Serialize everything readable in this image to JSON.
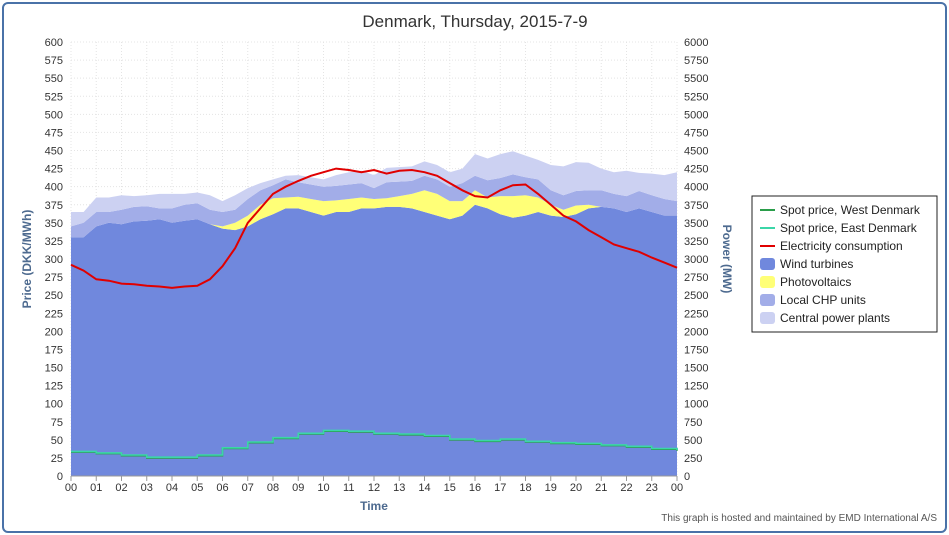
{
  "chart_data": {
    "type": "area",
    "title": "Denmark, Thursday, 2015-7-9",
    "xlabel": "Time",
    "ylabel_left": "Price (DKK/MWh)",
    "ylabel_right": "Power (MW)",
    "ylim_left": [
      0,
      600
    ],
    "ylim_right": [
      0,
      6000
    ],
    "left_ticks": [
      0,
      25,
      50,
      75,
      100,
      125,
      150,
      175,
      200,
      225,
      250,
      275,
      300,
      325,
      350,
      375,
      400,
      425,
      450,
      475,
      500,
      525,
      550,
      575,
      600
    ],
    "right_ticks": [
      0,
      250,
      500,
      750,
      1000,
      1250,
      1500,
      1750,
      2000,
      2250,
      2500,
      2750,
      3000,
      3250,
      3500,
      3750,
      4000,
      4250,
      4500,
      4750,
      5000,
      5250,
      5500,
      5750,
      6000
    ],
    "x_labels": [
      "00",
      "01",
      "02",
      "03",
      "04",
      "05",
      "06",
      "07",
      "08",
      "09",
      "10",
      "11",
      "12",
      "13",
      "14",
      "15",
      "16",
      "17",
      "18",
      "19",
      "20",
      "21",
      "22",
      "23",
      "00"
    ],
    "x_hours": [
      0,
      0.5,
      1,
      1.5,
      2,
      2.5,
      3,
      3.5,
      4,
      4.5,
      5,
      5.5,
      6,
      6.5,
      7,
      7.5,
      8,
      8.5,
      9,
      9.5,
      10,
      10.5,
      11,
      11.5,
      12,
      12.5,
      13,
      13.5,
      14,
      14.5,
      15,
      15.5,
      16,
      16.5,
      17,
      17.5,
      18,
      18.5,
      19,
      19.5,
      20,
      20.5,
      21,
      21.5,
      22,
      22.5,
      23,
      23.5,
      24
    ],
    "grid": true,
    "legend_position": "right",
    "series": [
      {
        "name": "Spot price, West Denmark",
        "kind": "step-line",
        "axis": "left",
        "color": "#2a9d4a",
        "values": [
          33,
          33,
          31,
          31,
          28,
          28,
          25,
          25,
          25,
          25,
          28,
          28,
          38,
          38,
          46,
          46,
          52,
          52,
          58,
          58,
          62,
          62,
          61,
          61,
          58,
          58,
          57,
          57,
          55,
          55,
          50,
          50,
          48,
          48,
          50,
          50,
          47,
          47,
          45,
          45,
          44,
          44,
          42,
          42,
          40,
          40,
          37,
          37,
          35
        ]
      },
      {
        "name": "Spot price, East Denmark",
        "kind": "step-line",
        "axis": "left",
        "color": "#3bd6a8",
        "values": [
          34,
          34,
          32,
          32,
          29,
          29,
          26,
          26,
          26,
          26,
          29,
          29,
          39,
          39,
          47,
          47,
          53,
          53,
          59,
          59,
          63,
          63,
          62,
          62,
          59,
          59,
          58,
          58,
          56,
          56,
          51,
          51,
          49,
          49,
          51,
          51,
          48,
          48,
          46,
          46,
          45,
          45,
          43,
          43,
          41,
          41,
          38,
          38,
          36
        ]
      },
      {
        "name": "Electricity consumption",
        "kind": "line",
        "axis": "right",
        "color": "#e00000",
        "values": [
          2920,
          2840,
          2720,
          2700,
          2660,
          2650,
          2630,
          2620,
          2600,
          2620,
          2630,
          2720,
          2900,
          3150,
          3500,
          3700,
          3900,
          4000,
          4080,
          4150,
          4200,
          4250,
          4230,
          4200,
          4230,
          4180,
          4220,
          4230,
          4200,
          4150,
          4050,
          3950,
          3870,
          3850,
          3950,
          4020,
          4030,
          3900,
          3750,
          3600,
          3520,
          3400,
          3300,
          3200,
          3150,
          3100,
          3020,
          2950,
          2880
        ]
      },
      {
        "name": "Wind turbines",
        "kind": "stack",
        "axis": "right",
        "color": "#7088dd",
        "values": [
          3300,
          3300,
          3450,
          3500,
          3480,
          3520,
          3530,
          3550,
          3500,
          3530,
          3550,
          3480,
          3420,
          3400,
          3450,
          3550,
          3620,
          3700,
          3700,
          3650,
          3600,
          3650,
          3650,
          3700,
          3700,
          3720,
          3720,
          3700,
          3650,
          3600,
          3550,
          3600,
          3750,
          3700,
          3620,
          3570,
          3600,
          3650,
          3600,
          3580,
          3620,
          3700,
          3720,
          3700,
          3650,
          3700,
          3650,
          3600,
          3600
        ]
      },
      {
        "name": "Photovoltaics",
        "kind": "stack",
        "axis": "right",
        "color": "#ffff77",
        "values": [
          0,
          0,
          0,
          0,
          0,
          0,
          0,
          0,
          0,
          0,
          0,
          0,
          30,
          100,
          150,
          200,
          220,
          150,
          160,
          180,
          200,
          160,
          180,
          150,
          130,
          120,
          150,
          200,
          300,
          300,
          250,
          200,
          200,
          150,
          250,
          300,
          280,
          200,
          150,
          100,
          120,
          50,
          0,
          0,
          0,
          0,
          0,
          0,
          0
        ]
      },
      {
        "name": "Local CHP units",
        "kind": "stack",
        "axis": "right",
        "color": "#a2ade8",
        "values": [
          150,
          200,
          200,
          150,
          200,
          200,
          200,
          150,
          200,
          220,
          220,
          200,
          200,
          180,
          230,
          200,
          180,
          250,
          200,
          200,
          200,
          200,
          200,
          200,
          150,
          220,
          200,
          180,
          200,
          200,
          200,
          250,
          200,
          240,
          250,
          300,
          250,
          250,
          200,
          200,
          200,
          200,
          230,
          200,
          220,
          240,
          230,
          230,
          200
        ]
      },
      {
        "name": "Central power plants",
        "kind": "stack",
        "axis": "right",
        "color": "#ccd1f2",
        "values": [
          200,
          150,
          200,
          200,
          200,
          150,
          150,
          200,
          200,
          150,
          150,
          200,
          150,
          200,
          150,
          100,
          80,
          50,
          100,
          100,
          100,
          150,
          170,
          170,
          180,
          200,
          200,
          200,
          200,
          200,
          200,
          200,
          300,
          300,
          330,
          320,
          300,
          270,
          350,
          400,
          400,
          380,
          300,
          300,
          350,
          250,
          300,
          330,
          400
        ]
      }
    ]
  },
  "credit": "This graph is hosted and maintained by EMD International A/S"
}
